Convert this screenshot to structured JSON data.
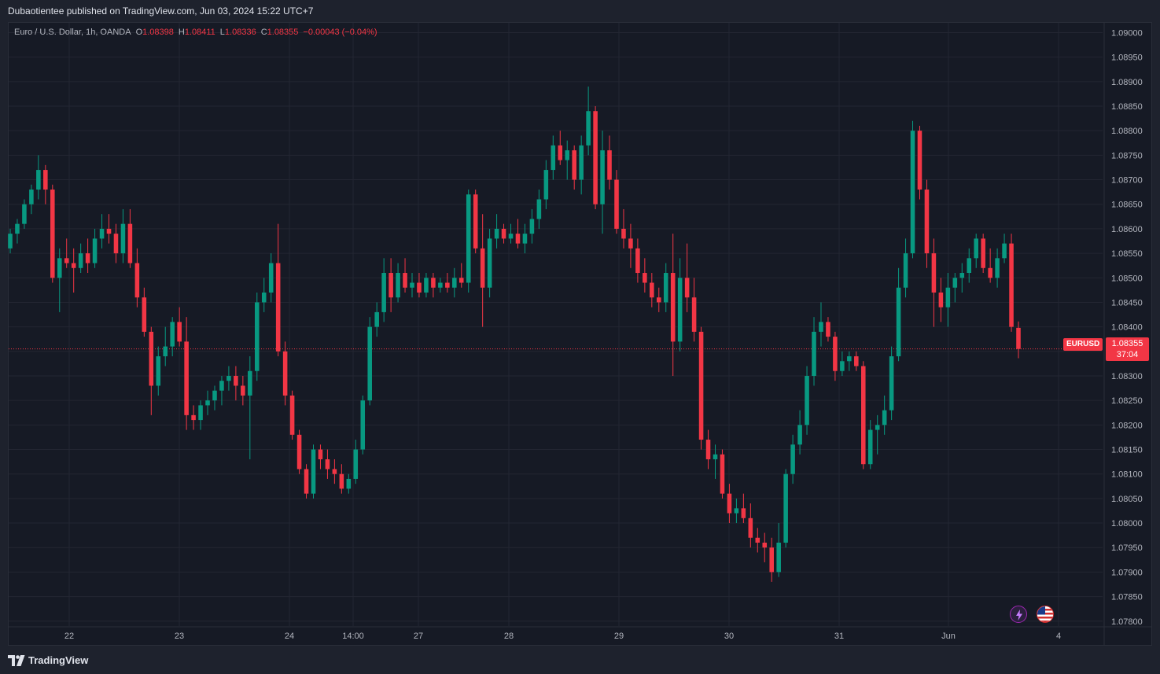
{
  "header": {
    "publisher_text": "Dubaotientee published on TradingView.com, Jun 03, 2024 15:22 UTC+7"
  },
  "legend": {
    "symbol": "Euro / U.S. Dollar, 1h, OANDA",
    "open_label": "O",
    "open": "1.08398",
    "high_label": "H",
    "high": "1.08411",
    "low_label": "L",
    "low": "1.08336",
    "close_label": "C",
    "close": "1.08355",
    "change": "−0.00043 (−0.04%)"
  },
  "price_tag": {
    "symbol": "EURUSD",
    "price": "1.08355",
    "countdown": "37:04"
  },
  "footer": {
    "brand": "TradingView"
  },
  "icons": {
    "alert": "bolt-icon",
    "region": "us-flag-icon"
  },
  "colors": {
    "up": "#089981",
    "down": "#f23645",
    "background": "#161a25",
    "grid": "#232632",
    "axis_text": "#b2b5be"
  },
  "chart_data": {
    "type": "candlestick",
    "title": "Euro / U.S. Dollar, 1h, OANDA",
    "y_axis": {
      "side": "right",
      "ticks": [
        "1.09000",
        "1.08950",
        "1.08900",
        "1.08850",
        "1.08800",
        "1.08750",
        "1.08700",
        "1.08650",
        "1.08600",
        "1.08550",
        "1.08500",
        "1.08450",
        "1.08400",
        "1.08350",
        "1.08300",
        "1.08250",
        "1.08200",
        "1.08150",
        "1.08100",
        "1.08050",
        "1.08000",
        "1.07950",
        "1.07900",
        "1.07850",
        "1.07800"
      ],
      "range": [
        1.0779,
        1.0902
      ]
    },
    "x_axis": {
      "ticks": [
        "22",
        "23",
        "24",
        "14:00",
        "27",
        "28",
        "29",
        "30",
        "31",
        "Jun",
        "4"
      ]
    },
    "last_price": 1.08355,
    "grid": true,
    "series": [
      {
        "o": 1.0856,
        "h": 1.086,
        "l": 1.0855,
        "c": 1.0859
      },
      {
        "o": 1.0859,
        "h": 1.0862,
        "l": 1.0857,
        "c": 1.0861
      },
      {
        "o": 1.0861,
        "h": 1.0866,
        "l": 1.086,
        "c": 1.0865
      },
      {
        "o": 1.0865,
        "h": 1.0869,
        "l": 1.0863,
        "c": 1.0868
      },
      {
        "o": 1.0868,
        "h": 1.0875,
        "l": 1.0866,
        "c": 1.0872
      },
      {
        "o": 1.0872,
        "h": 1.0873,
        "l": 1.0865,
        "c": 1.0868
      },
      {
        "o": 1.0868,
        "h": 1.0869,
        "l": 1.0849,
        "c": 1.085
      },
      {
        "o": 1.085,
        "h": 1.0856,
        "l": 1.0843,
        "c": 1.0854
      },
      {
        "o": 1.0854,
        "h": 1.0858,
        "l": 1.0852,
        "c": 1.0853
      },
      {
        "o": 1.0853,
        "h": 1.0856,
        "l": 1.0847,
        "c": 1.0852
      },
      {
        "o": 1.0852,
        "h": 1.0857,
        "l": 1.0851,
        "c": 1.0855
      },
      {
        "o": 1.0855,
        "h": 1.0858,
        "l": 1.0851,
        "c": 1.0853
      },
      {
        "o": 1.0853,
        "h": 1.086,
        "l": 1.0852,
        "c": 1.0858
      },
      {
        "o": 1.0858,
        "h": 1.0863,
        "l": 1.0856,
        "c": 1.086
      },
      {
        "o": 1.086,
        "h": 1.0863,
        "l": 1.0857,
        "c": 1.0859
      },
      {
        "o": 1.0859,
        "h": 1.0861,
        "l": 1.0853,
        "c": 1.0855
      },
      {
        "o": 1.0855,
        "h": 1.0864,
        "l": 1.0853,
        "c": 1.0861
      },
      {
        "o": 1.0861,
        "h": 1.0864,
        "l": 1.0852,
        "c": 1.0853
      },
      {
        "o": 1.0853,
        "h": 1.0856,
        "l": 1.0844,
        "c": 1.0846
      },
      {
        "o": 1.0846,
        "h": 1.0848,
        "l": 1.0838,
        "c": 1.0839
      },
      {
        "o": 1.0839,
        "h": 1.084,
        "l": 1.0822,
        "c": 1.0828
      },
      {
        "o": 1.0828,
        "h": 1.0836,
        "l": 1.0826,
        "c": 1.0834
      },
      {
        "o": 1.0834,
        "h": 1.084,
        "l": 1.0832,
        "c": 1.0836
      },
      {
        "o": 1.0836,
        "h": 1.0842,
        "l": 1.0834,
        "c": 1.0841
      },
      {
        "o": 1.0841,
        "h": 1.0844,
        "l": 1.0836,
        "c": 1.0837
      },
      {
        "o": 1.0837,
        "h": 1.0842,
        "l": 1.0819,
        "c": 1.0822
      },
      {
        "o": 1.0822,
        "h": 1.0824,
        "l": 1.0819,
        "c": 1.0821
      },
      {
        "o": 1.0821,
        "h": 1.0825,
        "l": 1.0819,
        "c": 1.0824
      },
      {
        "o": 1.0824,
        "h": 1.0827,
        "l": 1.0822,
        "c": 1.0825
      },
      {
        "o": 1.0825,
        "h": 1.0828,
        "l": 1.0823,
        "c": 1.0827
      },
      {
        "o": 1.0827,
        "h": 1.083,
        "l": 1.0824,
        "c": 1.0829
      },
      {
        "o": 1.0829,
        "h": 1.0832,
        "l": 1.0827,
        "c": 1.083
      },
      {
        "o": 1.083,
        "h": 1.0832,
        "l": 1.0825,
        "c": 1.0828
      },
      {
        "o": 1.0828,
        "h": 1.083,
        "l": 1.0824,
        "c": 1.0826
      },
      {
        "o": 1.0826,
        "h": 1.0834,
        "l": 1.0813,
        "c": 1.0831
      },
      {
        "o": 1.0831,
        "h": 1.0847,
        "l": 1.0829,
        "c": 1.0845
      },
      {
        "o": 1.0845,
        "h": 1.085,
        "l": 1.0843,
        "c": 1.0847
      },
      {
        "o": 1.0847,
        "h": 1.0855,
        "l": 1.0845,
        "c": 1.0853
      },
      {
        "o": 1.0853,
        "h": 1.0861,
        "l": 1.0834,
        "c": 1.0835
      },
      {
        "o": 1.0835,
        "h": 1.0837,
        "l": 1.0824,
        "c": 1.0826
      },
      {
        "o": 1.0826,
        "h": 1.0827,
        "l": 1.0817,
        "c": 1.0818
      },
      {
        "o": 1.0818,
        "h": 1.0819,
        "l": 1.081,
        "c": 1.0811
      },
      {
        "o": 1.0811,
        "h": 1.0812,
        "l": 1.0805,
        "c": 1.0806
      },
      {
        "o": 1.0806,
        "h": 1.0816,
        "l": 1.0805,
        "c": 1.0815
      },
      {
        "o": 1.0815,
        "h": 1.0816,
        "l": 1.0811,
        "c": 1.0813
      },
      {
        "o": 1.0813,
        "h": 1.0815,
        "l": 1.0809,
        "c": 1.0811
      },
      {
        "o": 1.0811,
        "h": 1.0813,
        "l": 1.0808,
        "c": 1.081
      },
      {
        "o": 1.081,
        "h": 1.0812,
        "l": 1.0806,
        "c": 1.0807
      },
      {
        "o": 1.0807,
        "h": 1.081,
        "l": 1.0806,
        "c": 1.0809
      },
      {
        "o": 1.0809,
        "h": 1.0817,
        "l": 1.0808,
        "c": 1.0815
      },
      {
        "o": 1.0815,
        "h": 1.0826,
        "l": 1.0814,
        "c": 1.0825
      },
      {
        "o": 1.0825,
        "h": 1.0842,
        "l": 1.0824,
        "c": 1.084
      },
      {
        "o": 1.084,
        "h": 1.0845,
        "l": 1.0838,
        "c": 1.0843
      },
      {
        "o": 1.0843,
        "h": 1.0854,
        "l": 1.0841,
        "c": 1.0851
      },
      {
        "o": 1.0851,
        "h": 1.0854,
        "l": 1.0843,
        "c": 1.0846
      },
      {
        "o": 1.0846,
        "h": 1.0853,
        "l": 1.0845,
        "c": 1.0851
      },
      {
        "o": 1.0851,
        "h": 1.0854,
        "l": 1.0847,
        "c": 1.0848
      },
      {
        "o": 1.0848,
        "h": 1.0851,
        "l": 1.0846,
        "c": 1.0849
      },
      {
        "o": 1.0849,
        "h": 1.0851,
        "l": 1.0846,
        "c": 1.0847
      },
      {
        "o": 1.0847,
        "h": 1.0851,
        "l": 1.0846,
        "c": 1.085
      },
      {
        "o": 1.085,
        "h": 1.0851,
        "l": 1.0846,
        "c": 1.0848
      },
      {
        "o": 1.0848,
        "h": 1.085,
        "l": 1.0847,
        "c": 1.0849
      },
      {
        "o": 1.0849,
        "h": 1.0851,
        "l": 1.0847,
        "c": 1.0848
      },
      {
        "o": 1.0848,
        "h": 1.0852,
        "l": 1.0846,
        "c": 1.085
      },
      {
        "o": 1.085,
        "h": 1.0853,
        "l": 1.0848,
        "c": 1.0849
      },
      {
        "o": 1.0849,
        "h": 1.0868,
        "l": 1.0847,
        "c": 1.0867
      },
      {
        "o": 1.0867,
        "h": 1.0868,
        "l": 1.0855,
        "c": 1.0856
      },
      {
        "o": 1.0856,
        "h": 1.0863,
        "l": 1.084,
        "c": 1.0848
      },
      {
        "o": 1.0848,
        "h": 1.086,
        "l": 1.0846,
        "c": 1.0858
      },
      {
        "o": 1.0858,
        "h": 1.0863,
        "l": 1.0856,
        "c": 1.086
      },
      {
        "o": 1.086,
        "h": 1.0861,
        "l": 1.0857,
        "c": 1.0858
      },
      {
        "o": 1.0858,
        "h": 1.0861,
        "l": 1.0857,
        "c": 1.0859
      },
      {
        "o": 1.0859,
        "h": 1.0862,
        "l": 1.0856,
        "c": 1.0857
      },
      {
        "o": 1.0857,
        "h": 1.0861,
        "l": 1.0855,
        "c": 1.0859
      },
      {
        "o": 1.0859,
        "h": 1.0864,
        "l": 1.0857,
        "c": 1.0862
      },
      {
        "o": 1.0862,
        "h": 1.0868,
        "l": 1.086,
        "c": 1.0866
      },
      {
        "o": 1.0866,
        "h": 1.0874,
        "l": 1.0864,
        "c": 1.0872
      },
      {
        "o": 1.0872,
        "h": 1.0879,
        "l": 1.087,
        "c": 1.0877
      },
      {
        "o": 1.0877,
        "h": 1.088,
        "l": 1.0873,
        "c": 1.0874
      },
      {
        "o": 1.0874,
        "h": 1.0878,
        "l": 1.087,
        "c": 1.0876
      },
      {
        "o": 1.0876,
        "h": 1.0877,
        "l": 1.0868,
        "c": 1.087
      },
      {
        "o": 1.087,
        "h": 1.0879,
        "l": 1.0867,
        "c": 1.0877
      },
      {
        "o": 1.0877,
        "h": 1.0889,
        "l": 1.0875,
        "c": 1.0884
      },
      {
        "o": 1.0884,
        "h": 1.0885,
        "l": 1.0864,
        "c": 1.0865
      },
      {
        "o": 1.0865,
        "h": 1.088,
        "l": 1.0859,
        "c": 1.0876
      },
      {
        "o": 1.0876,
        "h": 1.0879,
        "l": 1.0868,
        "c": 1.087
      },
      {
        "o": 1.087,
        "h": 1.0872,
        "l": 1.0859,
        "c": 1.086
      },
      {
        "o": 1.086,
        "h": 1.0864,
        "l": 1.0856,
        "c": 1.0858
      },
      {
        "o": 1.0858,
        "h": 1.0861,
        "l": 1.0852,
        "c": 1.0856
      },
      {
        "o": 1.0856,
        "h": 1.0858,
        "l": 1.0849,
        "c": 1.0851
      },
      {
        "o": 1.0851,
        "h": 1.0854,
        "l": 1.0847,
        "c": 1.0849
      },
      {
        "o": 1.0849,
        "h": 1.0851,
        "l": 1.0844,
        "c": 1.0846
      },
      {
        "o": 1.0846,
        "h": 1.0848,
        "l": 1.0843,
        "c": 1.0845
      },
      {
        "o": 1.0845,
        "h": 1.0853,
        "l": 1.0843,
        "c": 1.0851
      },
      {
        "o": 1.0851,
        "h": 1.0859,
        "l": 1.083,
        "c": 1.0837
      },
      {
        "o": 1.0837,
        "h": 1.0854,
        "l": 1.0835,
        "c": 1.085
      },
      {
        "o": 1.085,
        "h": 1.0857,
        "l": 1.0843,
        "c": 1.0846
      },
      {
        "o": 1.0846,
        "h": 1.085,
        "l": 1.0837,
        "c": 1.0839
      },
      {
        "o": 1.0839,
        "h": 1.084,
        "l": 1.0815,
        "c": 1.0817
      },
      {
        "o": 1.0817,
        "h": 1.0819,
        "l": 1.0811,
        "c": 1.0813
      },
      {
        "o": 1.0813,
        "h": 1.0816,
        "l": 1.0809,
        "c": 1.0814
      },
      {
        "o": 1.0814,
        "h": 1.0815,
        "l": 1.0805,
        "c": 1.0806
      },
      {
        "o": 1.0806,
        "h": 1.0808,
        "l": 1.08,
        "c": 1.0802
      },
      {
        "o": 1.0802,
        "h": 1.0805,
        "l": 1.08,
        "c": 1.0803
      },
      {
        "o": 1.0803,
        "h": 1.0806,
        "l": 1.08,
        "c": 1.0801
      },
      {
        "o": 1.0801,
        "h": 1.0804,
        "l": 1.0795,
        "c": 1.0797
      },
      {
        "o": 1.0797,
        "h": 1.0799,
        "l": 1.0794,
        "c": 1.0796
      },
      {
        "o": 1.0796,
        "h": 1.0798,
        "l": 1.0792,
        "c": 1.0795
      },
      {
        "o": 1.0795,
        "h": 1.0797,
        "l": 1.0788,
        "c": 1.079
      },
      {
        "o": 1.079,
        "h": 1.08,
        "l": 1.0789,
        "c": 1.0796
      },
      {
        "o": 1.0796,
        "h": 1.0811,
        "l": 1.0795,
        "c": 1.081
      },
      {
        "o": 1.081,
        "h": 1.0818,
        "l": 1.0808,
        "c": 1.0816
      },
      {
        "o": 1.0816,
        "h": 1.0823,
        "l": 1.0814,
        "c": 1.082
      },
      {
        "o": 1.082,
        "h": 1.0832,
        "l": 1.0818,
        "c": 1.083
      },
      {
        "o": 1.083,
        "h": 1.0842,
        "l": 1.0828,
        "c": 1.0839
      },
      {
        "o": 1.0839,
        "h": 1.0845,
        "l": 1.0836,
        "c": 1.0841
      },
      {
        "o": 1.0841,
        "h": 1.0842,
        "l": 1.0837,
        "c": 1.0838
      },
      {
        "o": 1.0838,
        "h": 1.0839,
        "l": 1.0829,
        "c": 1.0831
      },
      {
        "o": 1.0831,
        "h": 1.0835,
        "l": 1.083,
        "c": 1.0833
      },
      {
        "o": 1.0833,
        "h": 1.0835,
        "l": 1.0831,
        "c": 1.0834
      },
      {
        "o": 1.0834,
        "h": 1.0835,
        "l": 1.0831,
        "c": 1.0832
      },
      {
        "o": 1.0832,
        "h": 1.0833,
        "l": 1.0811,
        "c": 1.0812
      },
      {
        "o": 1.0812,
        "h": 1.0821,
        "l": 1.0811,
        "c": 1.0819
      },
      {
        "o": 1.0819,
        "h": 1.0822,
        "l": 1.0814,
        "c": 1.082
      },
      {
        "o": 1.082,
        "h": 1.0826,
        "l": 1.0818,
        "c": 1.0823
      },
      {
        "o": 1.0823,
        "h": 1.0836,
        "l": 1.0821,
        "c": 1.0834
      },
      {
        "o": 1.0834,
        "h": 1.0852,
        "l": 1.0833,
        "c": 1.0848
      },
      {
        "o": 1.0848,
        "h": 1.0858,
        "l": 1.0846,
        "c": 1.0855
      },
      {
        "o": 1.0855,
        "h": 1.0882,
        "l": 1.0854,
        "c": 1.088
      },
      {
        "o": 1.088,
        "h": 1.0881,
        "l": 1.0866,
        "c": 1.0868
      },
      {
        "o": 1.0868,
        "h": 1.087,
        "l": 1.0852,
        "c": 1.0855
      },
      {
        "o": 1.0855,
        "h": 1.0858,
        "l": 1.084,
        "c": 1.0847
      },
      {
        "o": 1.0847,
        "h": 1.085,
        "l": 1.0841,
        "c": 1.0844
      },
      {
        "o": 1.0844,
        "h": 1.0851,
        "l": 1.084,
        "c": 1.0848
      },
      {
        "o": 1.0848,
        "h": 1.0851,
        "l": 1.0845,
        "c": 1.085
      },
      {
        "o": 1.085,
        "h": 1.0853,
        "l": 1.0847,
        "c": 1.0851
      },
      {
        "o": 1.0851,
        "h": 1.0856,
        "l": 1.0849,
        "c": 1.0854
      },
      {
        "o": 1.0854,
        "h": 1.0859,
        "l": 1.0852,
        "c": 1.0858
      },
      {
        "o": 1.0858,
        "h": 1.0859,
        "l": 1.0851,
        "c": 1.0852
      },
      {
        "o": 1.0852,
        "h": 1.0856,
        "l": 1.0849,
        "c": 1.085
      },
      {
        "o": 1.085,
        "h": 1.0856,
        "l": 1.0848,
        "c": 1.0854
      },
      {
        "o": 1.0854,
        "h": 1.0859,
        "l": 1.0853,
        "c": 1.0857
      },
      {
        "o": 1.0857,
        "h": 1.0859,
        "l": 1.0839,
        "c": 1.084
      },
      {
        "o": 1.08398,
        "h": 1.08411,
        "l": 1.08336,
        "c": 1.08355
      }
    ]
  }
}
